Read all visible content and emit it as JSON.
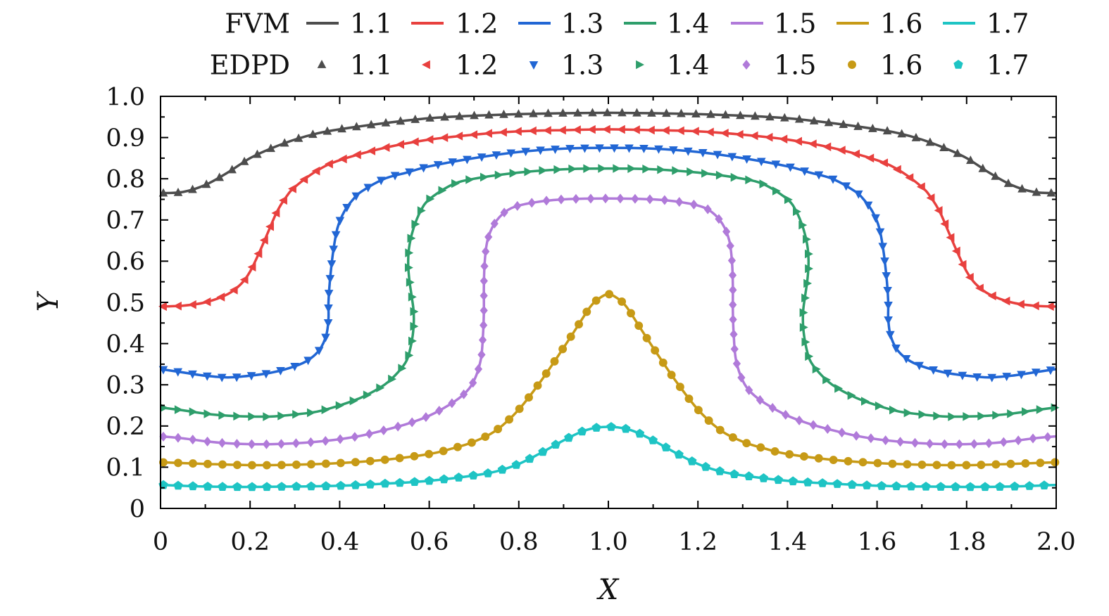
{
  "chart_data": {
    "type": "line",
    "xlabel": "X",
    "ylabel": "Y",
    "xlim": [
      0,
      2.0
    ],
    "ylim": [
      0,
      1.0
    ],
    "x_ticks": [
      0,
      0.2,
      0.4,
      0.6,
      0.8,
      1.0,
      1.2,
      1.4,
      1.6,
      1.8,
      2.0
    ],
    "x_tick_labels": [
      "0",
      "0.2",
      "0.4",
      "0.6",
      "0.8",
      "1.0",
      "1.2",
      "1.4",
      "1.6",
      "1.8",
      "2.0"
    ],
    "y_ticks": [
      0,
      0.1,
      0.2,
      0.3,
      0.4,
      0.5,
      0.6,
      0.7,
      0.8,
      0.9,
      1.0
    ],
    "y_tick_labels": [
      "0",
      "0.1",
      "0.2",
      "0.3",
      "0.4",
      "0.5",
      "0.6",
      "0.7",
      "0.8",
      "0.9",
      "1.0"
    ],
    "grid": false,
    "legend": {
      "placement": "top",
      "rows": [
        {
          "group": "FVM",
          "style": "line"
        },
        {
          "group": "EDPD",
          "style": "markers"
        }
      ]
    },
    "series": [
      {
        "name": "1.1",
        "color": "#4d4d4d",
        "marker": "triangle-up",
        "points": [
          [
            0,
            0.765
          ],
          [
            0.05,
            0.768
          ],
          [
            0.1,
            0.785
          ],
          [
            0.15,
            0.815
          ],
          [
            0.2,
            0.85
          ],
          [
            0.25,
            0.875
          ],
          [
            0.3,
            0.895
          ],
          [
            0.35,
            0.91
          ],
          [
            0.4,
            0.92
          ],
          [
            0.5,
            0.935
          ],
          [
            0.6,
            0.947
          ],
          [
            0.7,
            0.953
          ],
          [
            0.8,
            0.957
          ],
          [
            0.9,
            0.959
          ],
          [
            1.0,
            0.96
          ],
          [
            1.1,
            0.959
          ],
          [
            1.2,
            0.957
          ],
          [
            1.3,
            0.953
          ],
          [
            1.4,
            0.947
          ],
          [
            1.5,
            0.935
          ],
          [
            1.6,
            0.92
          ],
          [
            1.65,
            0.91
          ],
          [
            1.7,
            0.895
          ],
          [
            1.75,
            0.875
          ],
          [
            1.8,
            0.85
          ],
          [
            1.85,
            0.815
          ],
          [
            1.9,
            0.785
          ],
          [
            1.95,
            0.768
          ],
          [
            2.0,
            0.765
          ]
        ]
      },
      {
        "name": "1.2",
        "color": "#e8403e",
        "marker": "triangle-left",
        "points": [
          [
            0,
            0.49
          ],
          [
            0.05,
            0.492
          ],
          [
            0.1,
            0.5
          ],
          [
            0.15,
            0.52
          ],
          [
            0.18,
            0.545
          ],
          [
            0.2,
            0.575
          ],
          [
            0.22,
            0.62
          ],
          [
            0.24,
            0.67
          ],
          [
            0.26,
            0.72
          ],
          [
            0.28,
            0.755
          ],
          [
            0.3,
            0.78
          ],
          [
            0.35,
            0.82
          ],
          [
            0.4,
            0.845
          ],
          [
            0.5,
            0.875
          ],
          [
            0.6,
            0.895
          ],
          [
            0.7,
            0.907
          ],
          [
            0.8,
            0.915
          ],
          [
            0.9,
            0.918
          ],
          [
            1.0,
            0.92
          ],
          [
            1.1,
            0.918
          ],
          [
            1.2,
            0.915
          ],
          [
            1.3,
            0.907
          ],
          [
            1.4,
            0.895
          ],
          [
            1.5,
            0.875
          ],
          [
            1.6,
            0.845
          ],
          [
            1.65,
            0.82
          ],
          [
            1.7,
            0.78
          ],
          [
            1.72,
            0.755
          ],
          [
            1.74,
            0.72
          ],
          [
            1.76,
            0.67
          ],
          [
            1.78,
            0.62
          ],
          [
            1.8,
            0.575
          ],
          [
            1.82,
            0.545
          ],
          [
            1.85,
            0.52
          ],
          [
            1.9,
            0.5
          ],
          [
            1.95,
            0.492
          ],
          [
            2.0,
            0.49
          ]
        ]
      },
      {
        "name": "1.3",
        "color": "#2166d4",
        "marker": "triangle-down",
        "points": [
          [
            0,
            0.338
          ],
          [
            0.05,
            0.33
          ],
          [
            0.1,
            0.322
          ],
          [
            0.15,
            0.318
          ],
          [
            0.2,
            0.322
          ],
          [
            0.25,
            0.33
          ],
          [
            0.3,
            0.345
          ],
          [
            0.33,
            0.36
          ],
          [
            0.355,
            0.385
          ],
          [
            0.37,
            0.42
          ],
          [
            0.375,
            0.46
          ],
          [
            0.375,
            0.5
          ],
          [
            0.378,
            0.55
          ],
          [
            0.385,
            0.62
          ],
          [
            0.395,
            0.68
          ],
          [
            0.41,
            0.72
          ],
          [
            0.43,
            0.75
          ],
          [
            0.45,
            0.77
          ],
          [
            0.5,
            0.8
          ],
          [
            0.55,
            0.815
          ],
          [
            0.6,
            0.83
          ],
          [
            0.7,
            0.85
          ],
          [
            0.8,
            0.865
          ],
          [
            0.9,
            0.873
          ],
          [
            1.0,
            0.875
          ],
          [
            1.1,
            0.873
          ],
          [
            1.2,
            0.865
          ],
          [
            1.3,
            0.85
          ],
          [
            1.4,
            0.83
          ],
          [
            1.45,
            0.815
          ],
          [
            1.5,
            0.8
          ],
          [
            1.55,
            0.77
          ],
          [
            1.57,
            0.75
          ],
          [
            1.59,
            0.72
          ],
          [
            1.605,
            0.68
          ],
          [
            1.615,
            0.62
          ],
          [
            1.622,
            0.55
          ],
          [
            1.625,
            0.5
          ],
          [
            1.625,
            0.46
          ],
          [
            1.63,
            0.42
          ],
          [
            1.645,
            0.385
          ],
          [
            1.67,
            0.36
          ],
          [
            1.7,
            0.345
          ],
          [
            1.75,
            0.33
          ],
          [
            1.8,
            0.322
          ],
          [
            1.85,
            0.318
          ],
          [
            1.9,
            0.322
          ],
          [
            1.95,
            0.33
          ],
          [
            2.0,
            0.338
          ]
        ]
      },
      {
        "name": "1.4",
        "color": "#2e9e6b",
        "marker": "triangle-right",
        "points": [
          [
            0,
            0.245
          ],
          [
            0.05,
            0.238
          ],
          [
            0.1,
            0.23
          ],
          [
            0.15,
            0.225
          ],
          [
            0.2,
            0.223
          ],
          [
            0.25,
            0.223
          ],
          [
            0.3,
            0.228
          ],
          [
            0.35,
            0.235
          ],
          [
            0.4,
            0.25
          ],
          [
            0.45,
            0.27
          ],
          [
            0.5,
            0.3
          ],
          [
            0.53,
            0.33
          ],
          [
            0.55,
            0.36
          ],
          [
            0.56,
            0.4
          ],
          [
            0.565,
            0.44
          ],
          [
            0.565,
            0.48
          ],
          [
            0.56,
            0.52
          ],
          [
            0.555,
            0.56
          ],
          [
            0.553,
            0.6
          ],
          [
            0.556,
            0.64
          ],
          [
            0.565,
            0.68
          ],
          [
            0.58,
            0.72
          ],
          [
            0.6,
            0.75
          ],
          [
            0.65,
            0.785
          ],
          [
            0.7,
            0.8
          ],
          [
            0.8,
            0.815
          ],
          [
            0.9,
            0.823
          ],
          [
            1.0,
            0.825
          ],
          [
            1.1,
            0.823
          ],
          [
            1.2,
            0.815
          ],
          [
            1.3,
            0.8
          ],
          [
            1.35,
            0.785
          ],
          [
            1.4,
            0.75
          ],
          [
            1.42,
            0.72
          ],
          [
            1.435,
            0.68
          ],
          [
            1.444,
            0.64
          ],
          [
            1.447,
            0.6
          ],
          [
            1.445,
            0.56
          ],
          [
            1.44,
            0.52
          ],
          [
            1.435,
            0.48
          ],
          [
            1.435,
            0.44
          ],
          [
            1.44,
            0.4
          ],
          [
            1.45,
            0.36
          ],
          [
            1.47,
            0.33
          ],
          [
            1.5,
            0.3
          ],
          [
            1.55,
            0.27
          ],
          [
            1.6,
            0.25
          ],
          [
            1.65,
            0.235
          ],
          [
            1.7,
            0.228
          ],
          [
            1.75,
            0.223
          ],
          [
            1.8,
            0.223
          ],
          [
            1.85,
            0.225
          ],
          [
            1.9,
            0.23
          ],
          [
            1.95,
            0.238
          ],
          [
            2.0,
            0.245
          ]
        ]
      },
      {
        "name": "1.5",
        "color": "#b07ad9",
        "marker": "diamond",
        "points": [
          [
            0,
            0.175
          ],
          [
            0.05,
            0.17
          ],
          [
            0.1,
            0.163
          ],
          [
            0.15,
            0.158
          ],
          [
            0.2,
            0.156
          ],
          [
            0.25,
            0.156
          ],
          [
            0.3,
            0.158
          ],
          [
            0.35,
            0.162
          ],
          [
            0.4,
            0.168
          ],
          [
            0.45,
            0.177
          ],
          [
            0.5,
            0.19
          ],
          [
            0.55,
            0.205
          ],
          [
            0.6,
            0.225
          ],
          [
            0.65,
            0.255
          ],
          [
            0.68,
            0.28
          ],
          [
            0.7,
            0.31
          ],
          [
            0.715,
            0.36
          ],
          [
            0.72,
            0.42
          ],
          [
            0.722,
            0.48
          ],
          [
            0.722,
            0.54
          ],
          [
            0.724,
            0.6
          ],
          [
            0.73,
            0.65
          ],
          [
            0.745,
            0.69
          ],
          [
            0.77,
            0.72
          ],
          [
            0.8,
            0.735
          ],
          [
            0.85,
            0.745
          ],
          [
            0.9,
            0.75
          ],
          [
            1.0,
            0.752
          ],
          [
            1.1,
            0.75
          ],
          [
            1.15,
            0.745
          ],
          [
            1.2,
            0.735
          ],
          [
            1.23,
            0.72
          ],
          [
            1.255,
            0.69
          ],
          [
            1.27,
            0.65
          ],
          [
            1.276,
            0.6
          ],
          [
            1.278,
            0.54
          ],
          [
            1.278,
            0.48
          ],
          [
            1.28,
            0.42
          ],
          [
            1.285,
            0.36
          ],
          [
            1.3,
            0.31
          ],
          [
            1.32,
            0.28
          ],
          [
            1.35,
            0.255
          ],
          [
            1.4,
            0.225
          ],
          [
            1.45,
            0.205
          ],
          [
            1.5,
            0.19
          ],
          [
            1.55,
            0.177
          ],
          [
            1.6,
            0.168
          ],
          [
            1.65,
            0.162
          ],
          [
            1.7,
            0.158
          ],
          [
            1.75,
            0.156
          ],
          [
            1.8,
            0.156
          ],
          [
            1.85,
            0.158
          ],
          [
            1.9,
            0.163
          ],
          [
            1.95,
            0.17
          ],
          [
            2.0,
            0.175
          ]
        ]
      },
      {
        "name": "1.6",
        "color": "#c79a16",
        "marker": "circle",
        "points": [
          [
            0,
            0.112
          ],
          [
            0.1,
            0.108
          ],
          [
            0.2,
            0.105
          ],
          [
            0.3,
            0.106
          ],
          [
            0.4,
            0.11
          ],
          [
            0.5,
            0.118
          ],
          [
            0.6,
            0.132
          ],
          [
            0.65,
            0.145
          ],
          [
            0.7,
            0.162
          ],
          [
            0.75,
            0.19
          ],
          [
            0.8,
            0.24
          ],
          [
            0.85,
            0.31
          ],
          [
            0.9,
            0.39
          ],
          [
            0.93,
            0.44
          ],
          [
            0.96,
            0.49
          ],
          [
            0.98,
            0.51
          ],
          [
            1.0,
            0.52
          ],
          [
            1.02,
            0.51
          ],
          [
            1.04,
            0.49
          ],
          [
            1.07,
            0.44
          ],
          [
            1.1,
            0.39
          ],
          [
            1.15,
            0.31
          ],
          [
            1.2,
            0.24
          ],
          [
            1.25,
            0.19
          ],
          [
            1.3,
            0.162
          ],
          [
            1.35,
            0.145
          ],
          [
            1.4,
            0.132
          ],
          [
            1.5,
            0.118
          ],
          [
            1.6,
            0.11
          ],
          [
            1.7,
            0.106
          ],
          [
            1.8,
            0.105
          ],
          [
            1.9,
            0.108
          ],
          [
            2.0,
            0.112
          ]
        ]
      },
      {
        "name": "1.7",
        "color": "#1ec4c4",
        "marker": "pentagon",
        "points": [
          [
            0,
            0.057
          ],
          [
            0.1,
            0.053
          ],
          [
            0.2,
            0.052
          ],
          [
            0.3,
            0.053
          ],
          [
            0.4,
            0.055
          ],
          [
            0.5,
            0.06
          ],
          [
            0.6,
            0.067
          ],
          [
            0.7,
            0.08
          ],
          [
            0.75,
            0.09
          ],
          [
            0.8,
            0.108
          ],
          [
            0.85,
            0.135
          ],
          [
            0.9,
            0.165
          ],
          [
            0.95,
            0.19
          ],
          [
            1.0,
            0.198
          ],
          [
            1.05,
            0.19
          ],
          [
            1.1,
            0.165
          ],
          [
            1.15,
            0.135
          ],
          [
            1.2,
            0.108
          ],
          [
            1.25,
            0.09
          ],
          [
            1.3,
            0.08
          ],
          [
            1.4,
            0.067
          ],
          [
            1.5,
            0.06
          ],
          [
            1.6,
            0.055
          ],
          [
            1.7,
            0.053
          ],
          [
            1.8,
            0.052
          ],
          [
            1.9,
            0.053
          ],
          [
            2.0,
            0.057
          ]
        ]
      }
    ]
  }
}
